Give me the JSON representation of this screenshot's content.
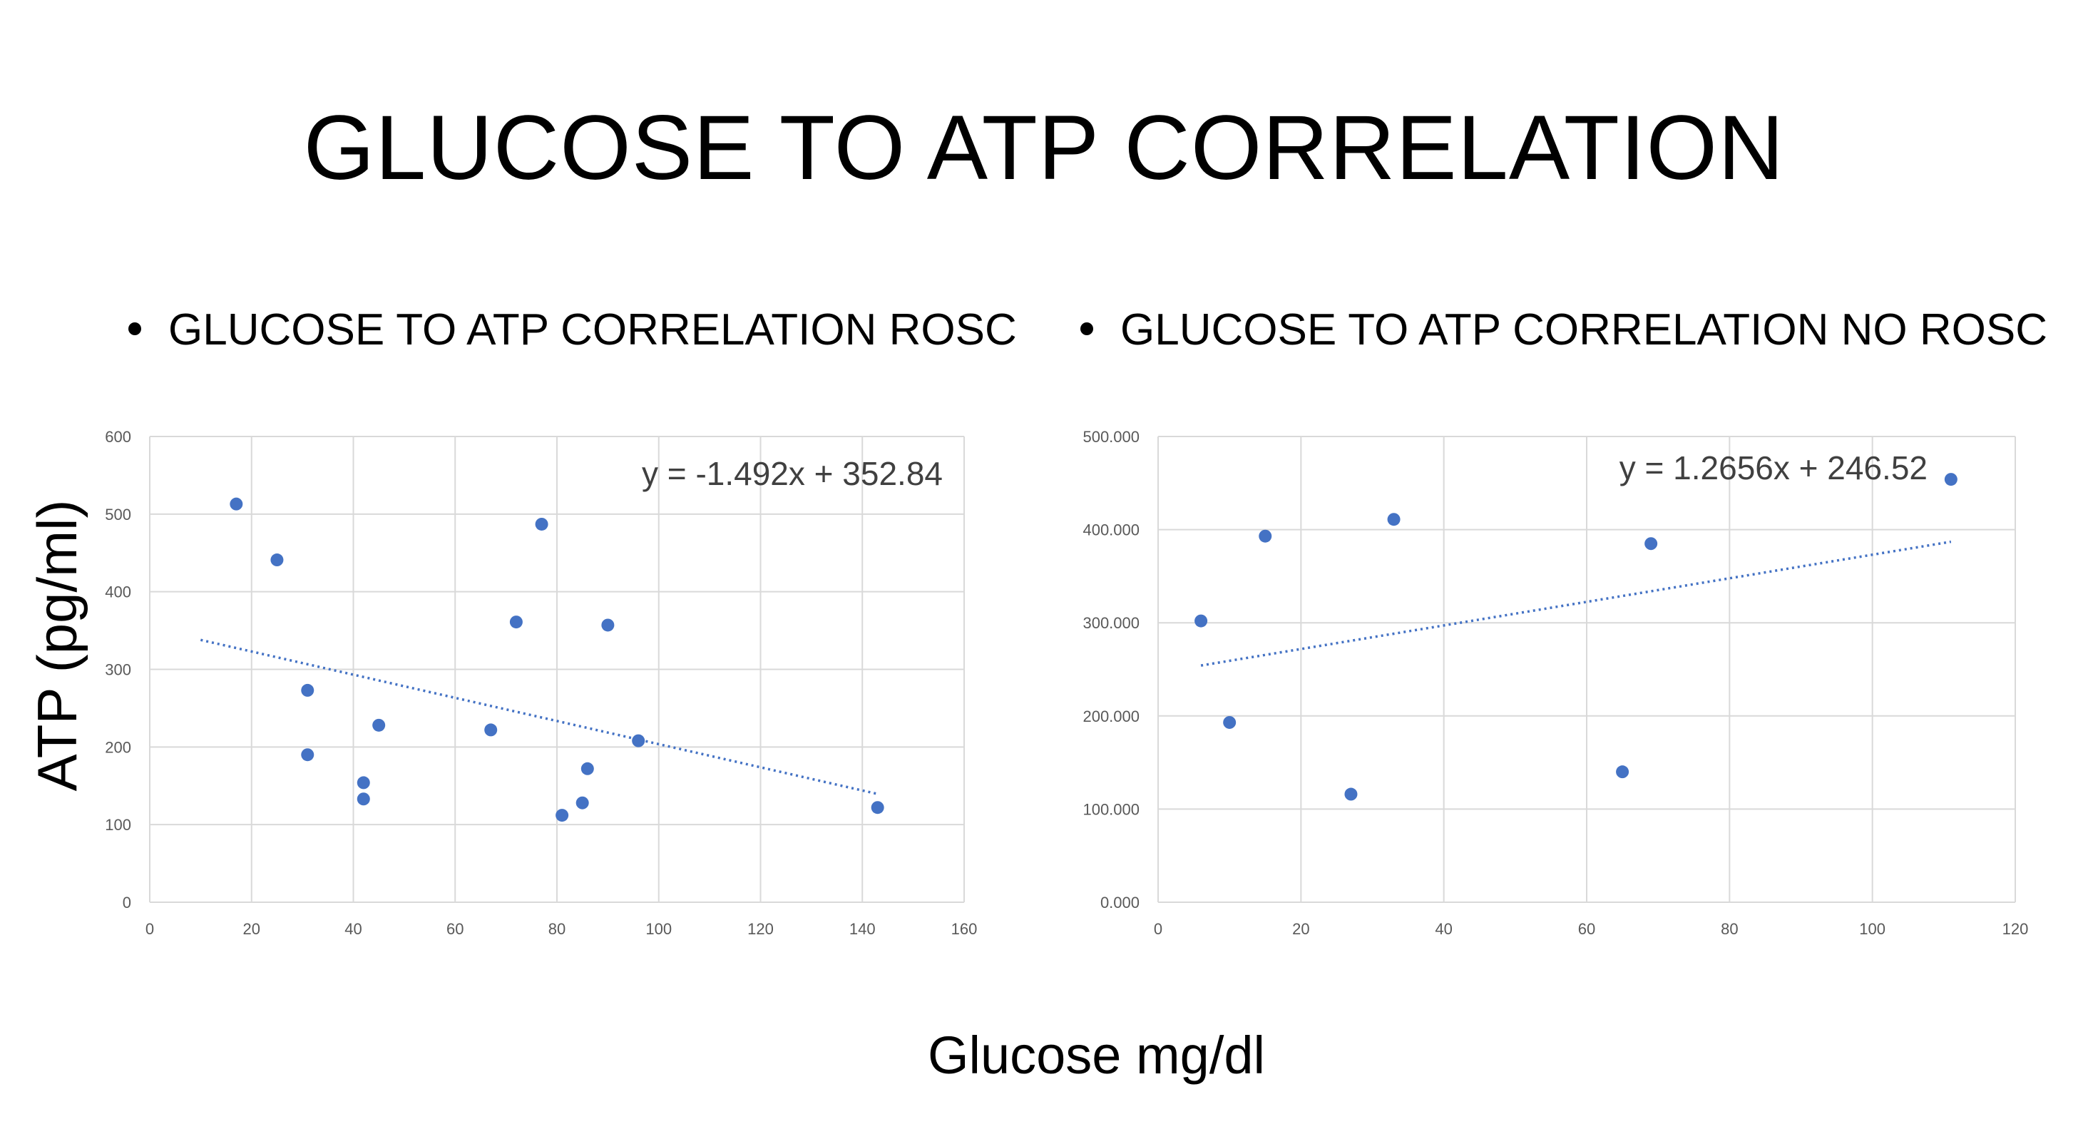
{
  "slide": {
    "title": "GLUCOSE TO ATP CORRELATION",
    "bullet_left": "GLUCOSE TO ATP CORRELATION ROSC",
    "bullet_right": "GLUCOSE TO ATP CORRELATION NO ROSC",
    "y_axis_title": "ATP (pg/ml)",
    "x_axis_title": "Glucose mg/dl"
  },
  "colors": {
    "marker": "#4472C4",
    "trendline": "#4472C4",
    "gridline": "#D9D9D9",
    "tick_text": "#595959",
    "equation_text": "#404040"
  },
  "chart_data": [
    {
      "type": "scatter",
      "title": "",
      "xlabel": "",
      "ylabel": "",
      "xlim": [
        0,
        160
      ],
      "ylim": [
        0,
        600
      ],
      "x_ticks": [
        "0",
        "20",
        "40",
        "60",
        "80",
        "100",
        "120",
        "140",
        "160"
      ],
      "y_ticks": [
        "0",
        "100",
        "200",
        "300",
        "400",
        "500",
        "600"
      ],
      "grid": true,
      "x": [
        17,
        25,
        31,
        31,
        42,
        42,
        45,
        67,
        72,
        77,
        81,
        85,
        86,
        90,
        96,
        143
      ],
      "y": [
        513,
        441,
        273,
        190,
        154,
        133,
        228,
        222,
        361,
        487,
        112,
        128,
        172,
        357,
        208,
        122
      ],
      "trendline": {
        "type": "linear",
        "style": "dotted",
        "slope": -1.492,
        "intercept": 352.84,
        "x_range": [
          10,
          143
        ],
        "equation": "y = -1.492x + 352.84"
      }
    },
    {
      "type": "scatter",
      "title": "",
      "xlabel": "",
      "ylabel": "",
      "xlim": [
        0,
        120
      ],
      "ylim": [
        0,
        500
      ],
      "x_ticks": [
        "0",
        "20",
        "40",
        "60",
        "80",
        "100",
        "120"
      ],
      "y_ticks": [
        "0.000",
        "100.000",
        "200.000",
        "300.000",
        "400.000",
        "500.000"
      ],
      "grid": true,
      "x": [
        6,
        10,
        15,
        27,
        33,
        65,
        69,
        111
      ],
      "y": [
        302,
        193,
        393,
        116,
        411,
        140,
        385,
        454
      ],
      "trendline": {
        "type": "linear",
        "style": "dotted",
        "slope": 1.2656,
        "intercept": 246.52,
        "x_range": [
          6,
          111
        ],
        "equation": "y = 1.2656x + 246.52"
      }
    }
  ]
}
